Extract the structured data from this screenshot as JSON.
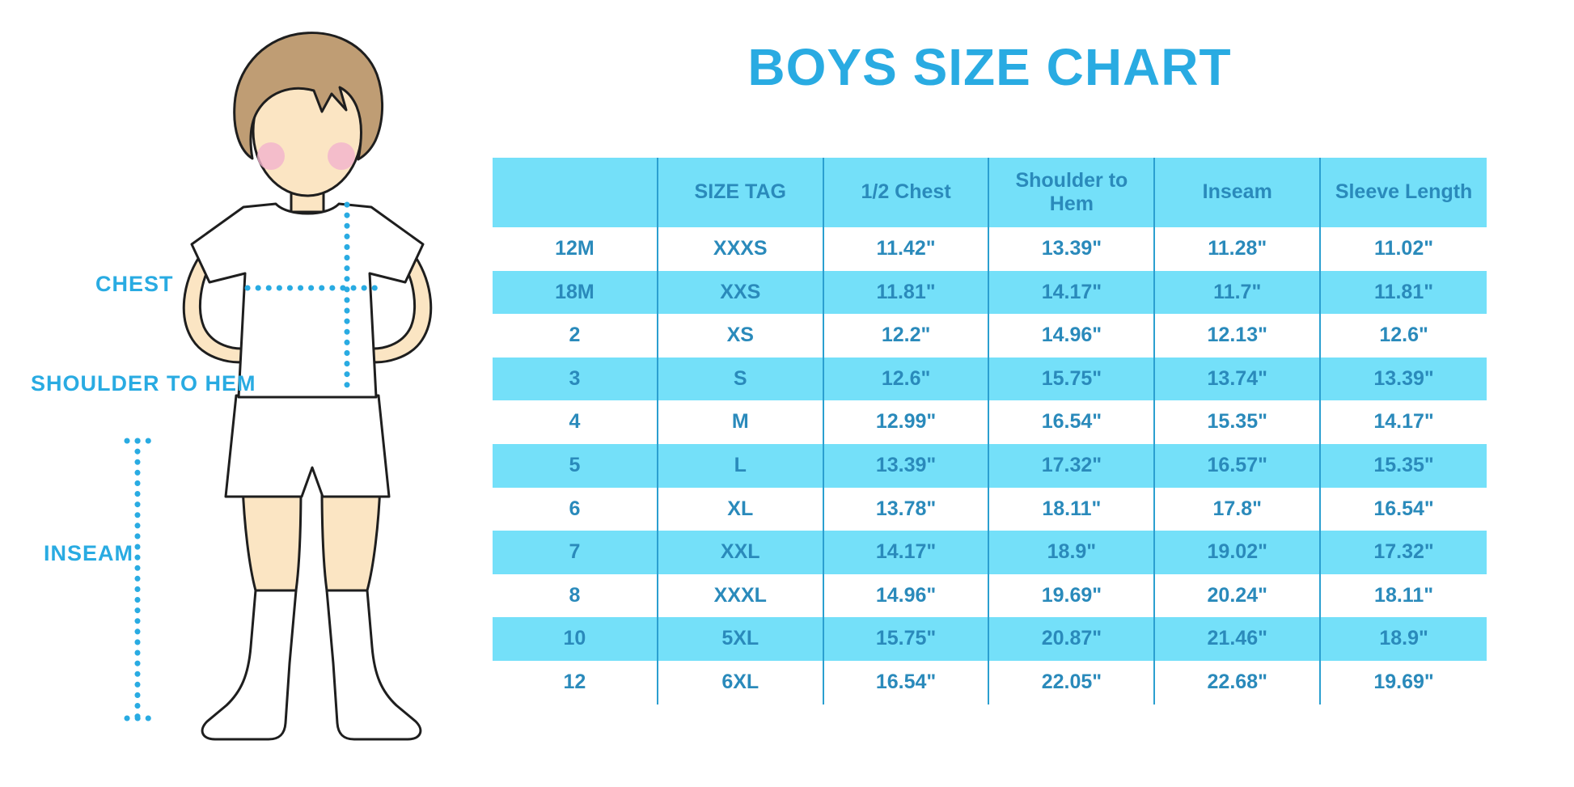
{
  "title": "BOYS SIZE CHART",
  "colors": {
    "accent": "#29abe2",
    "stripe": "#74e0f9",
    "table_text": "#2a8abb",
    "grid_line": "#2b9fd0",
    "skin": "#fbe5c3",
    "hair": "#bf9d74",
    "cheek": "#f3b3cd"
  },
  "diagram": {
    "chest_label": "CHEST",
    "shoulder_to_hem_label": "SHOULDER TO HEM",
    "inseam_label": "INSEAM"
  },
  "table": {
    "headers": [
      "",
      "SIZE TAG",
      "1/2 Chest",
      "Shoulder to\nHem",
      "Inseam",
      "Sleeve Length"
    ],
    "rows": [
      [
        "12M",
        "XXXS",
        "11.42\"",
        "13.39\"",
        "11.28\"",
        "11.02\""
      ],
      [
        "18M",
        "XXS",
        "11.81\"",
        "14.17\"",
        "11.7\"",
        "11.81\""
      ],
      [
        "2",
        "XS",
        "12.2\"",
        "14.96\"",
        "12.13\"",
        "12.6\""
      ],
      [
        "3",
        "S",
        "12.6\"",
        "15.75\"",
        "13.74\"",
        "13.39\""
      ],
      [
        "4",
        "M",
        "12.99\"",
        "16.54\"",
        "15.35\"",
        "14.17\""
      ],
      [
        "5",
        "L",
        "13.39\"",
        "17.32\"",
        "16.57\"",
        "15.35\""
      ],
      [
        "6",
        "XL",
        "13.78\"",
        "18.11\"",
        "17.8\"",
        "16.54\""
      ],
      [
        "7",
        "XXL",
        "14.17\"",
        "18.9\"",
        "19.02\"",
        "17.32\""
      ],
      [
        "8",
        "XXXL",
        "14.96\"",
        "19.69\"",
        "20.24\"",
        "18.11\""
      ],
      [
        "10",
        "5XL",
        "15.75\"",
        "20.87\"",
        "21.46\"",
        "18.9\""
      ],
      [
        "12",
        "6XL",
        "16.54\"",
        "22.05\"",
        "22.68\"",
        "19.69\""
      ]
    ]
  },
  "chart_data": {
    "type": "table",
    "title": "BOYS SIZE CHART",
    "columns": [
      "",
      "SIZE TAG",
      "1/2 Chest",
      "Shoulder to Hem",
      "Inseam",
      "Sleeve Length"
    ],
    "rows": [
      [
        "12M",
        "XXXS",
        "11.42\"",
        "13.39\"",
        "11.28\"",
        "11.02\""
      ],
      [
        "18M",
        "XXS",
        "11.81\"",
        "14.17\"",
        "11.7\"",
        "11.81\""
      ],
      [
        "2",
        "XS",
        "12.2\"",
        "14.96\"",
        "12.13\"",
        "12.6\""
      ],
      [
        "3",
        "S",
        "12.6\"",
        "15.75\"",
        "13.74\"",
        "13.39\""
      ],
      [
        "4",
        "M",
        "12.99\"",
        "16.54\"",
        "15.35\"",
        "14.17\""
      ],
      [
        "5",
        "L",
        "13.39\"",
        "17.32\"",
        "16.57\"",
        "15.35\""
      ],
      [
        "6",
        "XL",
        "13.78\"",
        "18.11\"",
        "17.8\"",
        "16.54\""
      ],
      [
        "7",
        "XXL",
        "14.17\"",
        "18.9\"",
        "19.02\"",
        "17.32\""
      ],
      [
        "8",
        "XXXL",
        "14.96\"",
        "19.69\"",
        "20.24\"",
        "18.11\""
      ],
      [
        "10",
        "5XL",
        "15.75\"",
        "20.87\"",
        "21.46\"",
        "18.9\""
      ],
      [
        "12",
        "6XL",
        "16.54\"",
        "22.05\"",
        "22.68\"",
        "19.69\""
      ]
    ],
    "units": "inches",
    "layout": {
      "stripes": "alternating cyan/white",
      "grid": "vertical column rules only"
    }
  }
}
